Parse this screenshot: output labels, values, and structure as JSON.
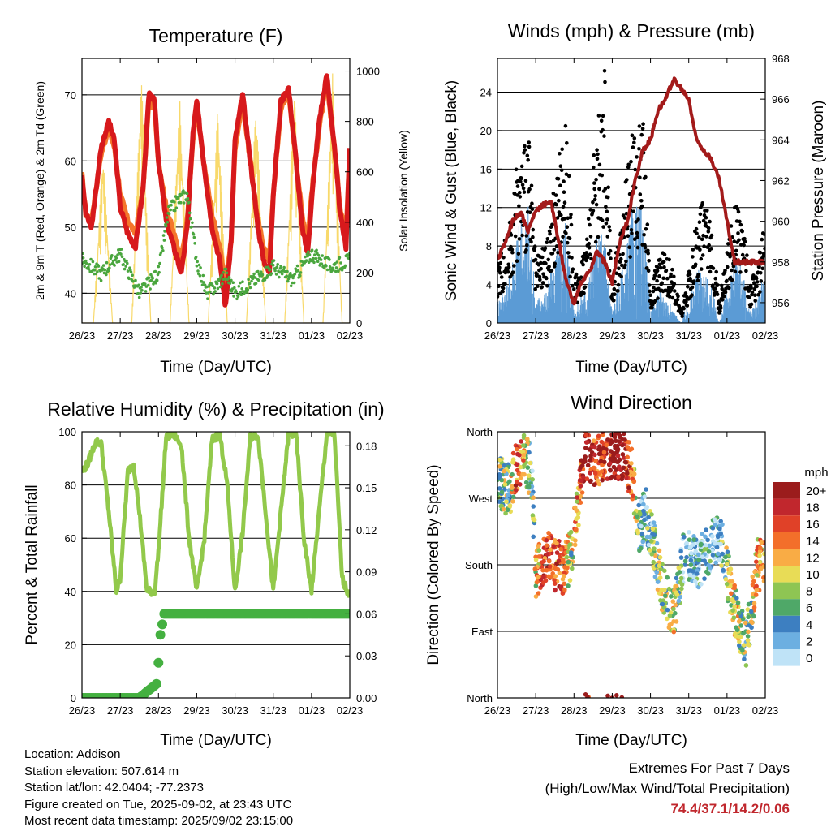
{
  "footer": {
    "location": "Location: Addison",
    "elevation": "Station elevation: 507.614 m",
    "latlon": "Station lat/lon: 42.0404; -77.2373",
    "created": "Figure created on Tue, 2025-09-02, at 23:43 UTC",
    "recent": "Most recent data timestamp: 2025/09/02 23:15:00",
    "extremes_title": "Extremes For Past 7 Days",
    "extremes_sub": "(High/Low/Max Wind/Total Precipitation)",
    "extremes_values": "74.4/37.1/14.2/0.06"
  },
  "colors": {
    "temp_2m": "#d7191c",
    "temp_9m": "#f4762b",
    "dewpoint": "#4aa63e",
    "solar": "#f8d96b",
    "wind": "#5b9bd5",
    "gust": "#000000",
    "pressure": "#a31a1a",
    "rh": "#92c94b",
    "precip": "#44b040"
  },
  "chart_data": [
    {
      "type": "line",
      "title": "Temperature (F)",
      "xlabel": "Time (Day/UTC)",
      "ylabel": "2m & 9m T (Red, Orange) & 2m Td (Green)",
      "ylabel_right": "Solar Insolation (Yellow)",
      "x_ticks": [
        "26/23",
        "27/23",
        "28/23",
        "29/23",
        "30/23",
        "31/23",
        "01/23",
        "02/23"
      ],
      "y_ticks": [
        "40",
        "50",
        "60",
        "70"
      ],
      "y_right_ticks": [
        "0",
        "200",
        "400",
        "600",
        "800",
        "1000"
      ],
      "ylim": [
        35.5,
        75.5
      ],
      "ylim_right": [
        0,
        1050
      ],
      "grid": "horizontal",
      "series": [
        {
          "name": "2m T (Red)",
          "x": [
            0,
            0.1,
            0.25,
            0.5,
            0.7,
            0.85,
            1.0,
            1.2,
            1.4,
            1.6,
            1.75,
            1.9,
            2.0,
            2.2,
            2.4,
            2.6,
            2.75,
            2.9,
            3.0,
            3.2,
            3.4,
            3.6,
            3.75,
            3.9,
            4.0,
            4.2,
            4.4,
            4.6,
            4.75,
            4.9,
            5.0,
            5.2,
            5.4,
            5.6,
            5.75,
            5.9,
            6.0,
            6.2,
            6.4,
            6.6,
            6.75,
            6.9,
            7.0
          ],
          "values": [
            58,
            52,
            50,
            62,
            66,
            63,
            53,
            49,
            47,
            56,
            70,
            69,
            60,
            51,
            47,
            43,
            50,
            64,
            69,
            59,
            50,
            45,
            38,
            48,
            63,
            70,
            60,
            50,
            45,
            43,
            55,
            69,
            71,
            60,
            50,
            46,
            54,
            66,
            73,
            62,
            52,
            47,
            62
          ]
        },
        {
          "name": "9m T (Orange)",
          "x": [
            0,
            0.1,
            0.25,
            0.5,
            0.7,
            0.85,
            1.0,
            1.2,
            1.4,
            1.6,
            1.75,
            1.9,
            2.0,
            2.2,
            2.4,
            2.6,
            2.75,
            2.9,
            3.0,
            3.2,
            3.4,
            3.6,
            3.75,
            3.9,
            4.0,
            4.2,
            4.4,
            4.6,
            4.75,
            4.9,
            5.0,
            5.2,
            5.4,
            5.6,
            5.75,
            5.9,
            6.0,
            6.2,
            6.4,
            6.6,
            6.75,
            6.9,
            7.0
          ],
          "values": [
            58,
            52,
            51,
            61,
            65,
            62,
            55,
            51,
            49,
            56,
            69,
            68,
            60,
            53,
            49,
            45,
            51,
            63,
            68,
            59,
            52,
            47,
            41,
            48,
            62,
            69,
            60,
            51,
            47,
            45,
            55,
            68,
            70,
            60,
            52,
            48,
            55,
            65,
            72,
            62,
            53,
            49,
            62
          ]
        },
        {
          "name": "2m Td (Green)",
          "x": [
            0,
            0.5,
            1.0,
            1.5,
            2.0,
            2.25,
            2.5,
            2.75,
            3.0,
            3.25,
            3.5,
            3.75,
            4.0,
            4.5,
            5.0,
            5.5,
            6.0,
            6.5,
            7.0
          ],
          "values": [
            45,
            43,
            46,
            40,
            43,
            52,
            54,
            55,
            45,
            40,
            41,
            43,
            40,
            42,
            44,
            42,
            46,
            44,
            45
          ]
        },
        {
          "name": "Solar Insolation (Yellow)",
          "axis": "right",
          "x": [
            0,
            0.3,
            0.55,
            0.8,
            1.0,
            1.3,
            1.55,
            1.8,
            2.0,
            2.3,
            2.55,
            2.8,
            3.0,
            3.3,
            3.55,
            3.8,
            4.0,
            4.3,
            4.55,
            4.8,
            5.0,
            5.3,
            5.55,
            5.8,
            6.0,
            6.3,
            6.55,
            6.8,
            7.0
          ],
          "values": [
            0,
            0,
            700,
            0,
            0,
            0,
            1000,
            0,
            0,
            0,
            920,
            0,
            0,
            0,
            870,
            0,
            0,
            0,
            900,
            0,
            0,
            0,
            950,
            0,
            0,
            0,
            1000,
            0,
            0
          ]
        }
      ]
    },
    {
      "type": "line",
      "title": "Winds (mph) & Pressure (mb)",
      "xlabel": "Time (Day/UTC)",
      "ylabel": "Sonic Wind & Gust (Blue, Black)",
      "ylabel_right": "Station Pressure (Maroon)",
      "x_ticks": [
        "26/23",
        "27/23",
        "28/23",
        "29/23",
        "30/23",
        "31/23",
        "01/23",
        "02/23"
      ],
      "y_ticks": [
        "0",
        "4",
        "8",
        "12",
        "16",
        "20",
        "24"
      ],
      "y_right_ticks": [
        "956",
        "958",
        "960",
        "962",
        "964",
        "966",
        "968"
      ],
      "ylim": [
        0,
        27.5
      ],
      "ylim_right": [
        955,
        968
      ],
      "grid": "horizontal",
      "series": [
        {
          "name": "Sonic Wind (Blue)",
          "x": [
            0,
            0.3,
            0.5,
            0.8,
            1.0,
            1.3,
            1.6,
            1.8,
            2.0,
            2.3,
            2.6,
            2.8,
            3.0,
            3.3,
            3.5,
            3.8,
            4.0,
            4.3,
            4.6,
            4.8,
            5.0,
            5.3,
            5.6,
            5.8,
            6.0,
            6.3,
            6.6,
            6.8,
            7.0
          ],
          "values": [
            2,
            4,
            8,
            10,
            2,
            3,
            7,
            9,
            1,
            3,
            7,
            8,
            1,
            5,
            9,
            10,
            1,
            3,
            1,
            0,
            2,
            5,
            3,
            0,
            3,
            6,
            1,
            2,
            5
          ]
        },
        {
          "name": "Gust (Black)",
          "x": [
            0,
            0.3,
            0.5,
            0.8,
            1.0,
            1.3,
            1.6,
            1.8,
            2.0,
            2.3,
            2.6,
            2.8,
            3.0,
            3.3,
            3.5,
            3.8,
            4.0,
            4.3,
            4.6,
            4.8,
            5.0,
            5.3,
            5.6,
            5.8,
            6.0,
            6.3,
            6.6,
            6.8,
            7.0
          ],
          "values": [
            6,
            9,
            15,
            19,
            6,
            8,
            16,
            20,
            4,
            8,
            19,
            25,
            4,
            12,
            18,
            20,
            3,
            8,
            5,
            1,
            5,
            12,
            10,
            2,
            8,
            13,
            4,
            6,
            10
          ]
        },
        {
          "name": "Station Pressure (Maroon)",
          "axis": "right",
          "x": [
            0,
            0.2,
            0.4,
            0.6,
            0.8,
            1.0,
            1.2,
            1.4,
            1.6,
            1.8,
            2.0,
            2.2,
            2.4,
            2.6,
            2.8,
            3.0,
            3.2,
            3.4,
            3.6,
            3.8,
            4.0,
            4.2,
            4.4,
            4.6,
            4.8,
            5.0,
            5.2,
            5.4,
            5.6,
            5.8,
            6.0,
            6.2,
            6.4,
            6.6,
            6.8,
            7.0
          ],
          "values": [
            958,
            959,
            960,
            960.5,
            959.5,
            960.5,
            960.8,
            961,
            959,
            957,
            956,
            957,
            957.5,
            958.5,
            958,
            957,
            959,
            960,
            962,
            963.5,
            964,
            965.5,
            966,
            967,
            966.5,
            966,
            964,
            963.5,
            963,
            962,
            960,
            958,
            958,
            958,
            958,
            958
          ]
        }
      ]
    },
    {
      "type": "line",
      "title": "Relative Humidity (%) & Precipitation (in)",
      "xlabel": "Time (Day/UTC)",
      "ylabel": "Percent & Total Rainfall",
      "x_ticks": [
        "26/23",
        "27/23",
        "28/23",
        "29/23",
        "30/23",
        "31/23",
        "01/23",
        "02/23"
      ],
      "y_ticks": [
        "0",
        "20",
        "40",
        "60",
        "80",
        "100"
      ],
      "y_right_ticks": [
        "0.00",
        "0.03",
        "0.06",
        "0.09",
        "0.12",
        "0.15",
        "0.18"
      ],
      "ylim": [
        0,
        100
      ],
      "ylim_right": [
        0,
        0.19
      ],
      "grid": "horizontal",
      "series": [
        {
          "name": "Relative Humidity",
          "x": [
            0,
            0.15,
            0.35,
            0.5,
            0.7,
            0.9,
            1.0,
            1.2,
            1.35,
            1.5,
            1.7,
            1.9,
            2.0,
            2.2,
            2.4,
            2.6,
            2.8,
            3.0,
            3.2,
            3.4,
            3.6,
            3.8,
            4.0,
            4.2,
            4.4,
            4.6,
            4.8,
            5.0,
            5.2,
            5.4,
            5.6,
            5.8,
            6.0,
            6.2,
            6.4,
            6.6,
            6.8,
            7.0
          ],
          "values": [
            85,
            88,
            96,
            96,
            70,
            40,
            45,
            85,
            88,
            70,
            40,
            40,
            55,
            98,
            99,
            95,
            60,
            40,
            60,
            97,
            99,
            80,
            40,
            62,
            98,
            99,
            70,
            40,
            70,
            99,
            99,
            60,
            40,
            70,
            99,
            99,
            45,
            38
          ]
        },
        {
          "name": "Total Rainfall",
          "axis": "right",
          "x": [
            0,
            0.5,
            1.0,
            1.5,
            1.95,
            2.0,
            2.05,
            2.15,
            2.5,
            3.0,
            4.0,
            5.0,
            6.0,
            7.0
          ],
          "values": [
            0,
            0,
            0,
            0,
            0.01,
            0.025,
            0.045,
            0.06,
            0.06,
            0.06,
            0.06,
            0.06,
            0.06,
            0.06
          ]
        }
      ]
    },
    {
      "type": "scatter",
      "title": "Wind Direction",
      "xlabel": "Time (Day/UTC)",
      "ylabel": "Direction (Colored By Speed)",
      "x_ticks": [
        "26/23",
        "27/23",
        "28/23",
        "29/23",
        "30/23",
        "31/23",
        "01/23",
        "02/23"
      ],
      "y_ticks": [
        "North",
        "East",
        "South",
        "West",
        "North"
      ],
      "ylim": [
        0,
        360
      ],
      "legend_title": "mph",
      "legend_labels": [
        "20+",
        "18",
        "16",
        "14",
        "12",
        "10",
        "8",
        "6",
        "4",
        "2",
        "0"
      ],
      "legend_colors": [
        "#9b1c1c",
        "#c1272d",
        "#e04128",
        "#f36f2a",
        "#f9ac45",
        "#e8dc56",
        "#8ec553",
        "#4fa868",
        "#3d7fc1",
        "#6cafe1",
        "#bfe3f7"
      ],
      "legend_placement": "right",
      "series": [
        {
          "name": "Wind Direction",
          "x": [
            0.1,
            0.3,
            0.5,
            0.7,
            0.9,
            1.0,
            1.3,
            1.5,
            1.7,
            1.9,
            2.3,
            2.6,
            2.8,
            3.2,
            3.5,
            3.7,
            3.9,
            4.3,
            4.6,
            4.9,
            5.2,
            5.5,
            5.8,
            6.2,
            6.5,
            6.8
          ],
          "values": [
            290,
            280,
            310,
            330,
            300,
            170,
            190,
            180,
            175,
            190,
            330,
            320,
            330,
            330,
            310,
            230,
            250,
            150,
            110,
            200,
            180,
            200,
            220,
            120,
            70,
            180
          ],
          "speeds": [
            4,
            3,
            8,
            6,
            2,
            5,
            9,
            8,
            7,
            4,
            10,
            8,
            9,
            11,
            8,
            2,
            2,
            4,
            5,
            1,
            2,
            1,
            2,
            5,
            3,
            6
          ]
        }
      ]
    }
  ]
}
